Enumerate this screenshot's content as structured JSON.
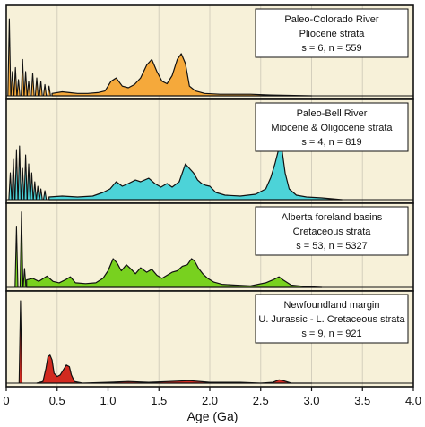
{
  "chart_data": {
    "type": "area",
    "title": "",
    "xlabel": "Age (Ga)",
    "ylabel": "",
    "xlim": [
      0,
      4.0
    ],
    "x_ticks": [
      "0",
      "0.5",
      "1.0",
      "1.5",
      "2.0",
      "2.5",
      "3.0",
      "3.5",
      "4.0"
    ],
    "x_tick_values": [
      0,
      0.5,
      1.0,
      1.5,
      2.0,
      2.5,
      3.0,
      3.5,
      4.0
    ],
    "grid": "vertical",
    "background_color": "#f7f1d9",
    "panels": [
      {
        "legend": {
          "line1": "Paleo-Colorado River",
          "line2": "Pliocene strata",
          "line3": "s = 6, n = 559"
        },
        "fill_color": "#f5a93b",
        "spikes": [
          [
            0.03,
            0.95
          ],
          [
            0.06,
            0.3
          ],
          [
            0.09,
            0.35
          ],
          [
            0.12,
            0.2
          ],
          [
            0.16,
            0.45
          ],
          [
            0.19,
            0.3
          ],
          [
            0.22,
            0.18
          ],
          [
            0.26,
            0.28
          ],
          [
            0.3,
            0.22
          ],
          [
            0.34,
            0.18
          ],
          [
            0.38,
            0.14
          ],
          [
            0.42,
            0.12
          ]
        ],
        "points": [
          [
            0.45,
            0.03
          ],
          [
            0.55,
            0.05
          ],
          [
            0.62,
            0.04
          ],
          [
            0.7,
            0.03
          ],
          [
            0.8,
            0.03
          ],
          [
            0.9,
            0.04
          ],
          [
            0.97,
            0.06
          ],
          [
            1.03,
            0.18
          ],
          [
            1.08,
            0.22
          ],
          [
            1.14,
            0.12
          ],
          [
            1.2,
            0.1
          ],
          [
            1.26,
            0.14
          ],
          [
            1.32,
            0.22
          ],
          [
            1.38,
            0.38
          ],
          [
            1.43,
            0.45
          ],
          [
            1.48,
            0.3
          ],
          [
            1.53,
            0.18
          ],
          [
            1.58,
            0.15
          ],
          [
            1.63,
            0.25
          ],
          [
            1.68,
            0.45
          ],
          [
            1.72,
            0.52
          ],
          [
            1.76,
            0.4
          ],
          [
            1.8,
            0.12
          ],
          [
            1.86,
            0.06
          ],
          [
            1.95,
            0.03
          ],
          [
            2.1,
            0.02
          ],
          [
            2.4,
            0.02
          ],
          [
            2.6,
            0.01
          ],
          [
            3.0,
            0.0
          ]
        ]
      },
      {
        "legend": {
          "line1": "Paleo-Bell River",
          "line2": "Miocene & Oligocene strata",
          "line3": "s = 4, n = 819"
        },
        "fill_color": "#4cd3d8",
        "spikes": [
          [
            0.04,
            0.3
          ],
          [
            0.07,
            0.45
          ],
          [
            0.1,
            0.55
          ],
          [
            0.13,
            0.6
          ],
          [
            0.16,
            0.35
          ],
          [
            0.19,
            0.5
          ],
          [
            0.22,
            0.4
          ],
          [
            0.25,
            0.3
          ],
          [
            0.28,
            0.2
          ],
          [
            0.31,
            0.15
          ],
          [
            0.34,
            0.12
          ],
          [
            0.38,
            0.1
          ]
        ],
        "points": [
          [
            0.42,
            0.03
          ],
          [
            0.55,
            0.04
          ],
          [
            0.7,
            0.03
          ],
          [
            0.85,
            0.04
          ],
          [
            0.95,
            0.08
          ],
          [
            1.02,
            0.12
          ],
          [
            1.08,
            0.2
          ],
          [
            1.14,
            0.15
          ],
          [
            1.2,
            0.18
          ],
          [
            1.27,
            0.22
          ],
          [
            1.32,
            0.2
          ],
          [
            1.4,
            0.24
          ],
          [
            1.46,
            0.18
          ],
          [
            1.52,
            0.14
          ],
          [
            1.58,
            0.18
          ],
          [
            1.63,
            0.14
          ],
          [
            1.7,
            0.2
          ],
          [
            1.76,
            0.4
          ],
          [
            1.8,
            0.35
          ],
          [
            1.84,
            0.3
          ],
          [
            1.88,
            0.22
          ],
          [
            1.92,
            0.18
          ],
          [
            1.96,
            0.16
          ],
          [
            2.0,
            0.15
          ],
          [
            2.06,
            0.08
          ],
          [
            2.15,
            0.05
          ],
          [
            2.3,
            0.04
          ],
          [
            2.45,
            0.06
          ],
          [
            2.55,
            0.12
          ],
          [
            2.6,
            0.25
          ],
          [
            2.64,
            0.4
          ],
          [
            2.68,
            0.58
          ],
          [
            2.71,
            0.55
          ],
          [
            2.74,
            0.3
          ],
          [
            2.78,
            0.12
          ],
          [
            2.85,
            0.05
          ],
          [
            2.95,
            0.03
          ],
          [
            3.1,
            0.02
          ],
          [
            3.3,
            0.0
          ]
        ]
      },
      {
        "legend": {
          "line1": "Alberta foreland basins",
          "line2": "Cretaceous strata",
          "line3": "s = 53, n = 5327"
        },
        "fill_color": "#78d11f",
        "spikes": [
          [
            0.1,
            0.8
          ],
          [
            0.15,
            1.0
          ],
          [
            0.18,
            0.25
          ]
        ],
        "points": [
          [
            0.2,
            0.1
          ],
          [
            0.26,
            0.12
          ],
          [
            0.32,
            0.08
          ],
          [
            0.4,
            0.15
          ],
          [
            0.46,
            0.08
          ],
          [
            0.52,
            0.06
          ],
          [
            0.58,
            0.1
          ],
          [
            0.63,
            0.14
          ],
          [
            0.68,
            0.06
          ],
          [
            0.78,
            0.05
          ],
          [
            0.88,
            0.06
          ],
          [
            0.95,
            0.12
          ],
          [
            1.0,
            0.22
          ],
          [
            1.05,
            0.38
          ],
          [
            1.09,
            0.32
          ],
          [
            1.13,
            0.22
          ],
          [
            1.18,
            0.3
          ],
          [
            1.22,
            0.25
          ],
          [
            1.27,
            0.18
          ],
          [
            1.32,
            0.26
          ],
          [
            1.38,
            0.2
          ],
          [
            1.43,
            0.24
          ],
          [
            1.48,
            0.16
          ],
          [
            1.53,
            0.12
          ],
          [
            1.58,
            0.16
          ],
          [
            1.63,
            0.2
          ],
          [
            1.68,
            0.22
          ],
          [
            1.73,
            0.28
          ],
          [
            1.78,
            0.3
          ],
          [
            1.82,
            0.38
          ],
          [
            1.85,
            0.35
          ],
          [
            1.89,
            0.25
          ],
          [
            1.93,
            0.18
          ],
          [
            1.98,
            0.12
          ],
          [
            2.04,
            0.07
          ],
          [
            2.12,
            0.04
          ],
          [
            2.25,
            0.03
          ],
          [
            2.4,
            0.02
          ],
          [
            2.55,
            0.06
          ],
          [
            2.62,
            0.1
          ],
          [
            2.68,
            0.14
          ],
          [
            2.72,
            0.1
          ],
          [
            2.8,
            0.03
          ],
          [
            2.95,
            0.01
          ],
          [
            3.1,
            0.0
          ]
        ]
      },
      {
        "legend": {
          "line1": "Newfoundland margin",
          "line2": "U. Jurassic - L. Cretaceous strata",
          "line3": "s = 9, n = 921"
        },
        "fill_color": "#d22a1f",
        "spikes": [
          [
            0.14,
            1.0
          ]
        ],
        "points": [
          [
            0.3,
            0.0
          ],
          [
            0.36,
            0.02
          ],
          [
            0.39,
            0.18
          ],
          [
            0.41,
            0.32
          ],
          [
            0.43,
            0.34
          ],
          [
            0.45,
            0.28
          ],
          [
            0.47,
            0.12
          ],
          [
            0.5,
            0.08
          ],
          [
            0.53,
            0.1
          ],
          [
            0.56,
            0.16
          ],
          [
            0.59,
            0.22
          ],
          [
            0.62,
            0.2
          ],
          [
            0.64,
            0.1
          ],
          [
            0.67,
            0.02
          ],
          [
            0.75,
            0.0
          ],
          [
            1.0,
            0.01
          ],
          [
            1.2,
            0.02
          ],
          [
            1.4,
            0.01
          ],
          [
            1.6,
            0.02
          ],
          [
            1.8,
            0.03
          ],
          [
            2.0,
            0.01
          ],
          [
            2.3,
            0.01
          ],
          [
            2.5,
            0.0
          ],
          [
            2.62,
            0.01
          ],
          [
            2.68,
            0.04
          ],
          [
            2.72,
            0.03
          ],
          [
            2.8,
            0.0
          ],
          [
            3.0,
            0.0
          ]
        ]
      }
    ]
  }
}
